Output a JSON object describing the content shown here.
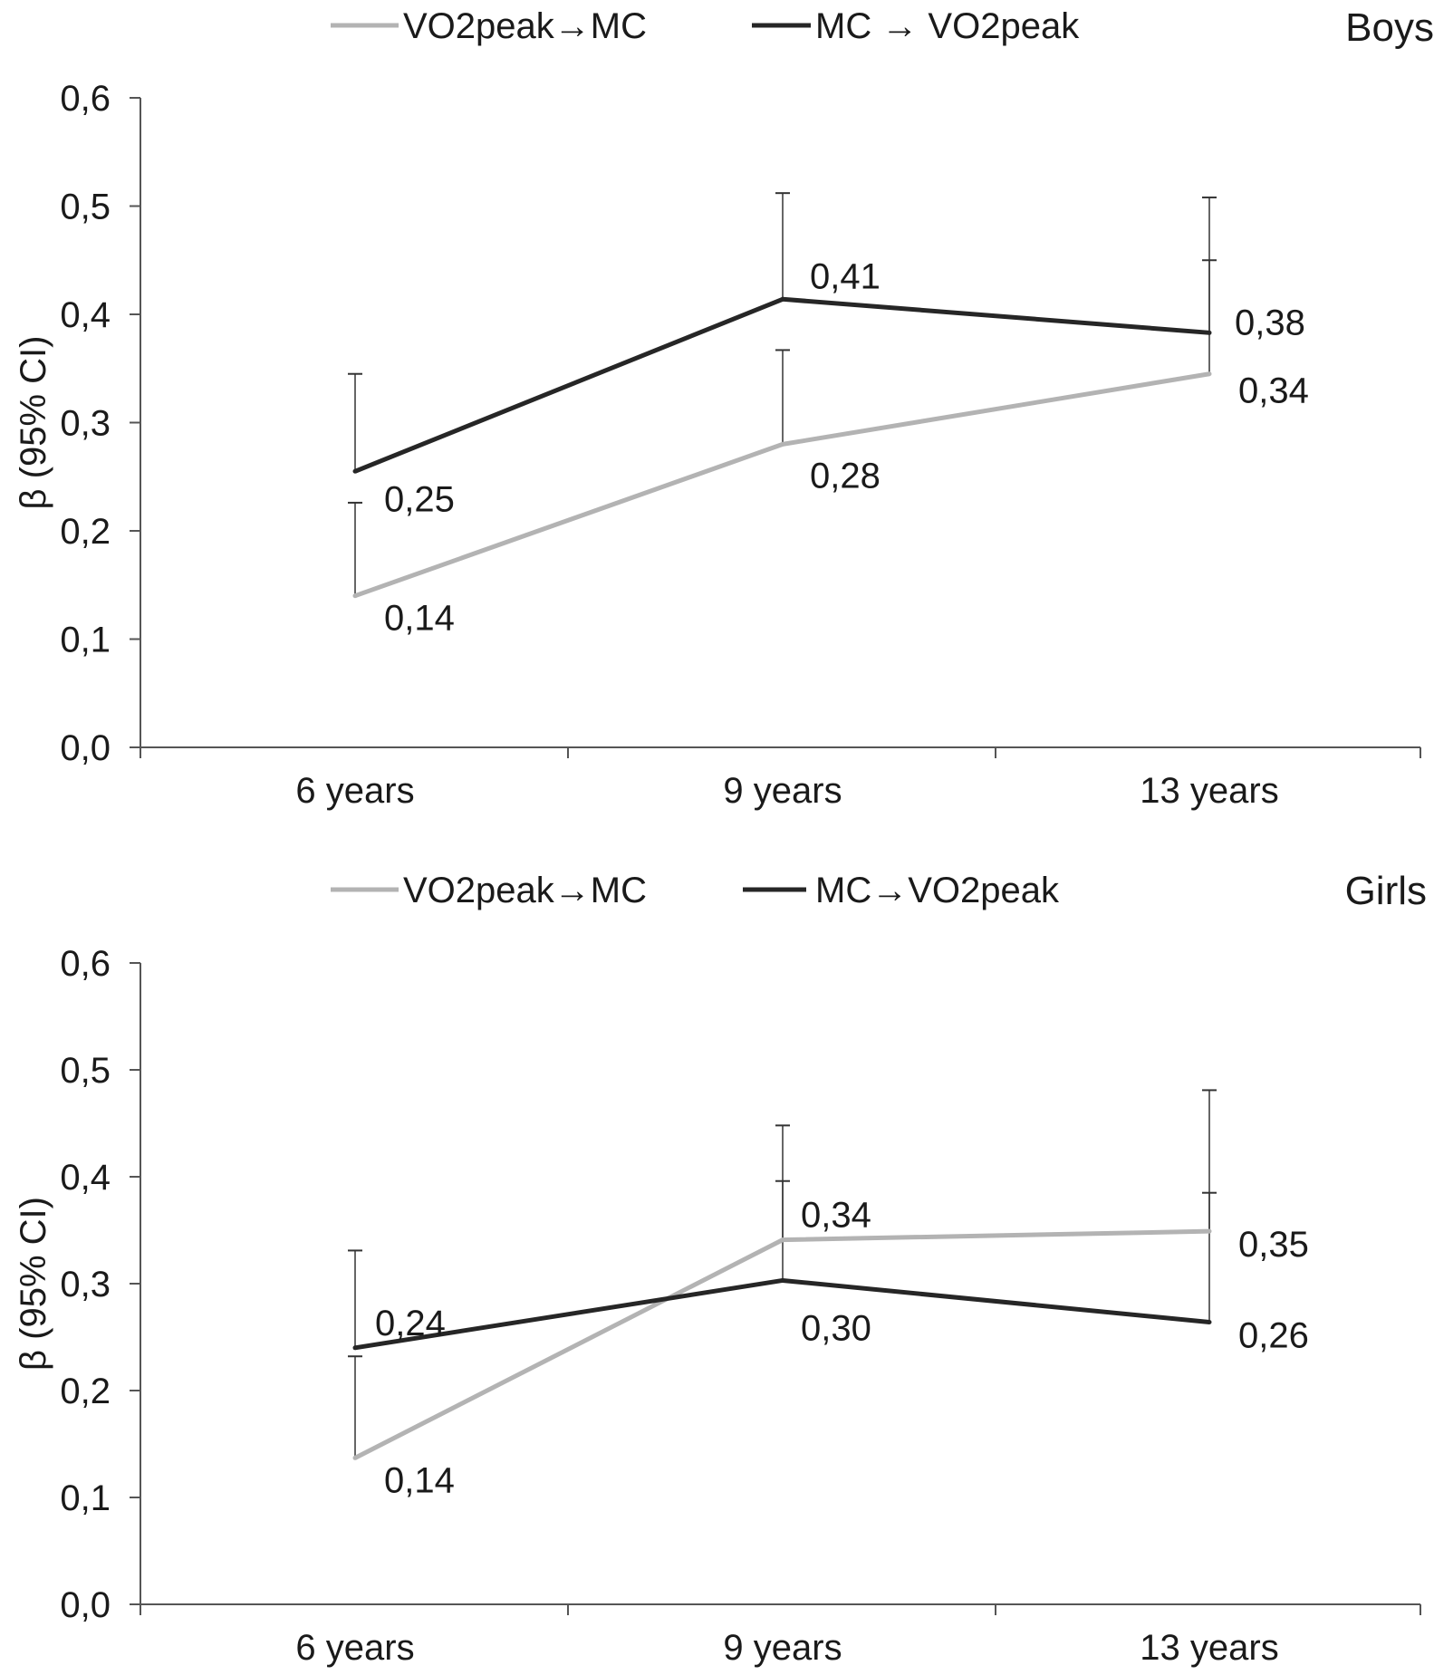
{
  "chart_data": [
    {
      "type": "line",
      "title": "Boys",
      "ylabel": "β (95% CI)",
      "xlabel": "",
      "categories": [
        "6 years",
        "9 years",
        "13 years"
      ],
      "ylim": [
        0.0,
        0.6
      ],
      "yticks": [
        "0,0",
        "0,1",
        "0,2",
        "0,3",
        "0,4",
        "0,5",
        "0,6"
      ],
      "legend_position": "top",
      "grid": false,
      "series": [
        {
          "name": "VO2peak→MC",
          "color": "#b3b3b3",
          "values": [
            0.14,
            0.28,
            0.345
          ],
          "ci_upper": [
            0.226,
            0.367,
            0.45
          ],
          "labels": [
            "0,14",
            "0,28",
            "0,34"
          ]
        },
        {
          "name": "MC → VO2peak",
          "color": "#262626",
          "values": [
            0.255,
            0.414,
            0.383
          ],
          "ci_upper": [
            0.345,
            0.512,
            0.508
          ],
          "labels": [
            "0,25",
            "0,41",
            "0,38"
          ]
        }
      ]
    },
    {
      "type": "line",
      "title": "Girls",
      "ylabel": "β (95% CI)",
      "xlabel": "",
      "categories": [
        "6 years",
        "9 years",
        "13 years"
      ],
      "ylim": [
        0.0,
        0.6
      ],
      "yticks": [
        "0,0",
        "0,1",
        "0,2",
        "0,3",
        "0,4",
        "0,5",
        "0,6"
      ],
      "legend_position": "top",
      "grid": false,
      "series": [
        {
          "name": "VO2peak→MC",
          "color": "#b3b3b3",
          "values": [
            0.137,
            0.341,
            0.349
          ],
          "ci_upper": [
            0.232,
            0.396,
            0.385
          ],
          "labels": [
            "0,14",
            "0,34",
            "0,35"
          ]
        },
        {
          "name": "MC→VO2peak",
          "color": "#262626",
          "values": [
            0.24,
            0.303,
            0.264
          ],
          "ci_upper": [
            0.331,
            0.448,
            0.481
          ],
          "labels": [
            "0,24",
            "0,30",
            "0,26"
          ]
        }
      ]
    }
  ]
}
